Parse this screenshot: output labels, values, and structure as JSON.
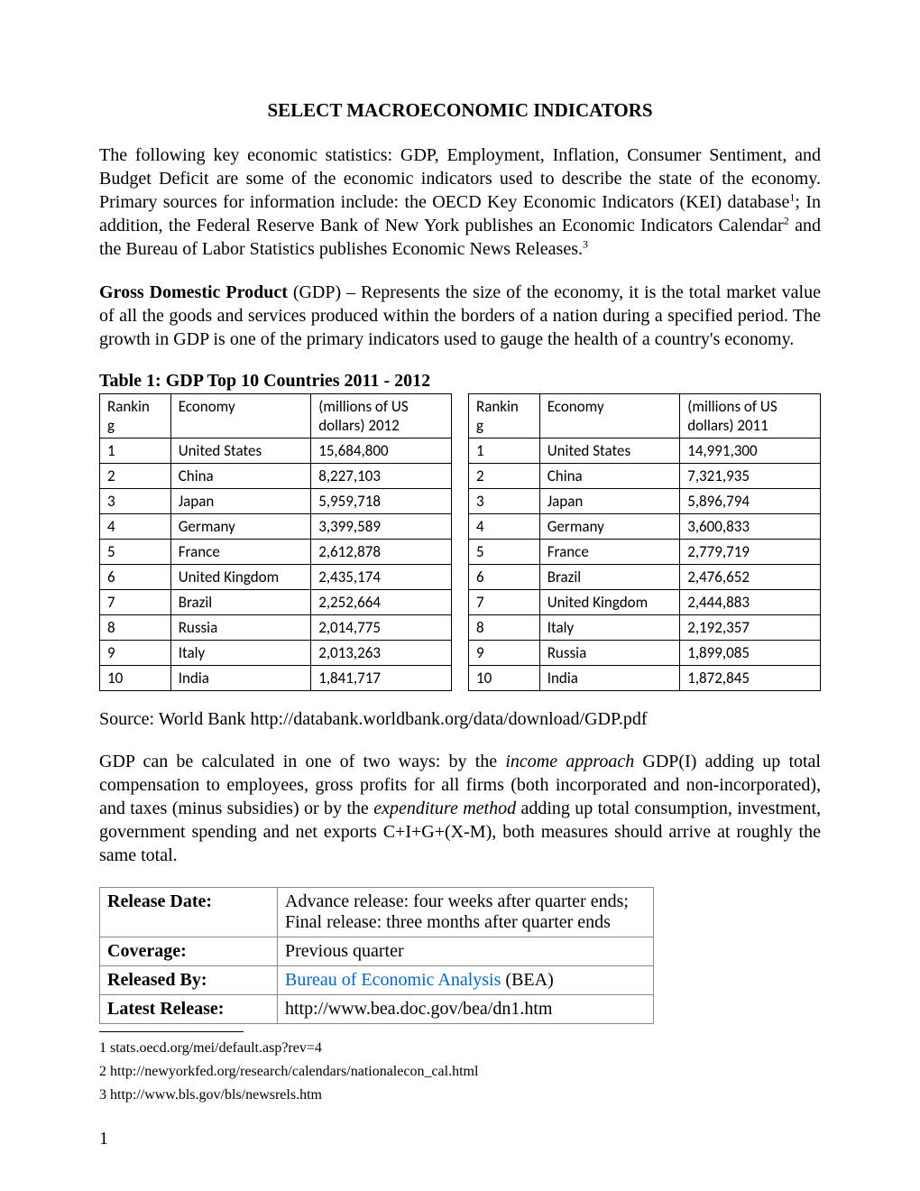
{
  "title": "SELECT MACROECONOMIC INDICATORS",
  "intro": {
    "p1a": "The following key economic statistics: GDP, Employment, Inflation, Consumer Sentiment, and Budget Deficit are some of the economic indicators used to describe the state of the economy. Primary sources for information include: the OECD Key Economic Indicators (KEI) database",
    "fn1": "1",
    "p1b": "; In addition, the Federal Reserve Bank of New York publishes an Economic Indicators Calendar",
    "fn2": "2",
    "p1c": " and the Bureau of Labor Statistics publishes Economic News Releases.",
    "fn3": "3"
  },
  "gdp_def": {
    "lead": "Gross Domestic Product",
    "rest": " (GDP) – Represents the size of the economy, it is the total market value of all the goods and services produced within the borders of a nation during a specified period.  The growth in GDP is one of the primary indicators used to gauge the health of a country's economy."
  },
  "table_caption": "Table 1: GDP Top 10 Countries 2011 - 2012",
  "gdp_tables": {
    "left": {
      "headers": {
        "rank": "Rankin\ng",
        "economy": "Economy",
        "value": "(millions of US dollars) 2012"
      },
      "rows": [
        {
          "rank": "1",
          "economy": "United States",
          "value": "15,684,800"
        },
        {
          "rank": "2",
          "economy": "China",
          "value": "8,227,103"
        },
        {
          "rank": "3",
          "economy": "Japan",
          "value": "5,959,718"
        },
        {
          "rank": "4",
          "economy": "Germany",
          "value": "3,399,589"
        },
        {
          "rank": "5",
          "economy": "France",
          "value": "2,612,878"
        },
        {
          "rank": "6",
          "economy": "United Kingdom",
          "value": "2,435,174"
        },
        {
          "rank": "7",
          "economy": "Brazil",
          "value": "2,252,664"
        },
        {
          "rank": "8",
          "economy": "Russia",
          "value": "2,014,775"
        },
        {
          "rank": "9",
          "economy": "Italy",
          "value": "2,013,263"
        },
        {
          "rank": "10",
          "economy": "India",
          "value": "1,841,717"
        }
      ]
    },
    "right": {
      "headers": {
        "rank": "Rankin\ng",
        "economy": "Economy",
        "value": "(millions of US dollars) 2011"
      },
      "rows": [
        {
          "rank": "1",
          "economy": "United States",
          "value": "14,991,300"
        },
        {
          "rank": "2",
          "economy": "China",
          "value": "7,321,935"
        },
        {
          "rank": "3",
          "economy": "Japan",
          "value": "5,896,794"
        },
        {
          "rank": "4",
          "economy": "Germany",
          "value": "3,600,833"
        },
        {
          "rank": "5",
          "economy": "France",
          "value": "2,779,719"
        },
        {
          "rank": "6",
          "economy": "Brazil",
          "value": "2,476,652"
        },
        {
          "rank": "7",
          "economy": "United Kingdom",
          "value": "2,444,883"
        },
        {
          "rank": "8",
          "economy": "Italy",
          "value": "2,192,357"
        },
        {
          "rank": "9",
          "economy": "Russia",
          "value": "1,899,085"
        },
        {
          "rank": "10",
          "economy": "India",
          "value": "1,872,845"
        }
      ]
    }
  },
  "source": "Source: World Bank http://databank.worldbank.org/data/download/GDP.pdf",
  "calc": {
    "a": "GDP can be calculated in one of two ways: by the ",
    "i1": "income approach",
    "b": " GDP(I) adding up total compensation to employees, gross profits for all firms (both incorporated and non-incorporated), and taxes (minus subsidies) or by the ",
    "i2": "expenditure method",
    "c": " adding up total consumption, investment, government spending and net exports C+I+G+(X-M), both measures should arrive at roughly the same total."
  },
  "info_table": {
    "rows": [
      {
        "label": "Release Date:",
        "value": "Advance release: four weeks after quarter ends; Final release: three months after quarter ends"
      },
      {
        "label": "Coverage:",
        "value": "Previous quarter"
      },
      {
        "label": "Released By:",
        "link": "Bureau of Economic Analysis",
        "suffix": " (BEA)"
      },
      {
        "label": "Latest Release:",
        "value": "http://www.bea.doc.gov/bea/dn1.htm"
      }
    ]
  },
  "footnotes": [
    "1  stats.oecd.org/mei/default.asp?rev=4",
    "2  http://newyorkfed.org/research/calendars/nationalecon_cal.html",
    "3  http://www.bls.gov/bls/newsrels.htm"
  ],
  "page_number": "1"
}
